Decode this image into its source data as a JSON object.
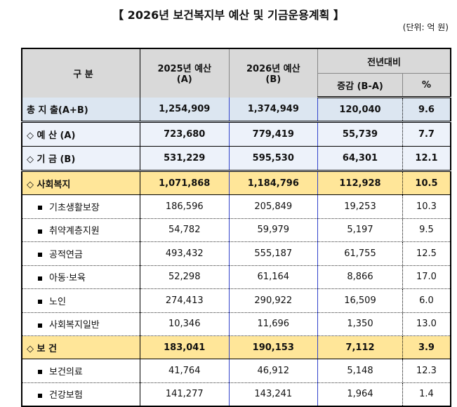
{
  "title": "【 2026년 보건복지부 예산 및 기금운용계획 】",
  "unit": "(단위: 억 원)",
  "headers": {
    "category": "구 분",
    "y2025": "2025년 예산",
    "y2025_sub": "(A)",
    "y2026": "2026년 예산",
    "y2026_sub": "(B)",
    "yoy": "전년대비",
    "change": "증감 (B-A)",
    "pct": "%"
  },
  "rows": [
    {
      "type": "total",
      "label": "총 지 출(A+B)",
      "a": "1,254,909",
      "b": "1,374,949",
      "chg": "120,040",
      "pct": "9.6"
    },
    {
      "type": "budget",
      "label": "◇ 예 산 (A)",
      "a": "723,680",
      "b": "779,419",
      "chg": "55,739",
      "pct": "7.7"
    },
    {
      "type": "fund",
      "label": "◇ 기 금 (B)",
      "a": "531,229",
      "b": "595,530",
      "chg": "64,301",
      "pct": "12.1"
    },
    {
      "type": "yellow",
      "label": "◇ 사회복지",
      "a": "1,071,868",
      "b": "1,184,796",
      "chg": "112,928",
      "pct": "10.5"
    },
    {
      "type": "item",
      "label": "기초생활보장",
      "a": "186,596",
      "b": "205,849",
      "chg": "19,253",
      "pct": "10.3"
    },
    {
      "type": "item",
      "label": "취약계층지원",
      "a": "54,782",
      "b": "59,979",
      "chg": "5,197",
      "pct": "9.5"
    },
    {
      "type": "item",
      "label": "공적연금",
      "a": "493,432",
      "b": "555,187",
      "chg": "61,755",
      "pct": "12.5"
    },
    {
      "type": "item",
      "label": "아동·보육",
      "a": "52,298",
      "b": "61,164",
      "chg": "8,866",
      "pct": "17.0"
    },
    {
      "type": "item",
      "label": "노인",
      "a": "274,413",
      "b": "290,922",
      "chg": "16,509",
      "pct": "6.0"
    },
    {
      "type": "item",
      "label": "사회복지일반",
      "a": "10,346",
      "b": "11,696",
      "chg": "1,350",
      "pct": "13.0"
    },
    {
      "type": "yellow",
      "label": "◇ 보 건",
      "a": "183,041",
      "b": "190,153",
      "chg": "7,112",
      "pct": "3.9"
    },
    {
      "type": "item",
      "label": "보건의료",
      "a": "41,764",
      "b": "46,912",
      "chg": "5,148",
      "pct": "12.3"
    },
    {
      "type": "item",
      "label": "건강보험",
      "a": "141,277",
      "b": "143,241",
      "chg": "1,964",
      "pct": "1.4"
    }
  ],
  "colors": {
    "header": "#d9d9d9",
    "total": "#dce6f1",
    "budget": "#edf2fa",
    "highlight": "#ffe699"
  }
}
